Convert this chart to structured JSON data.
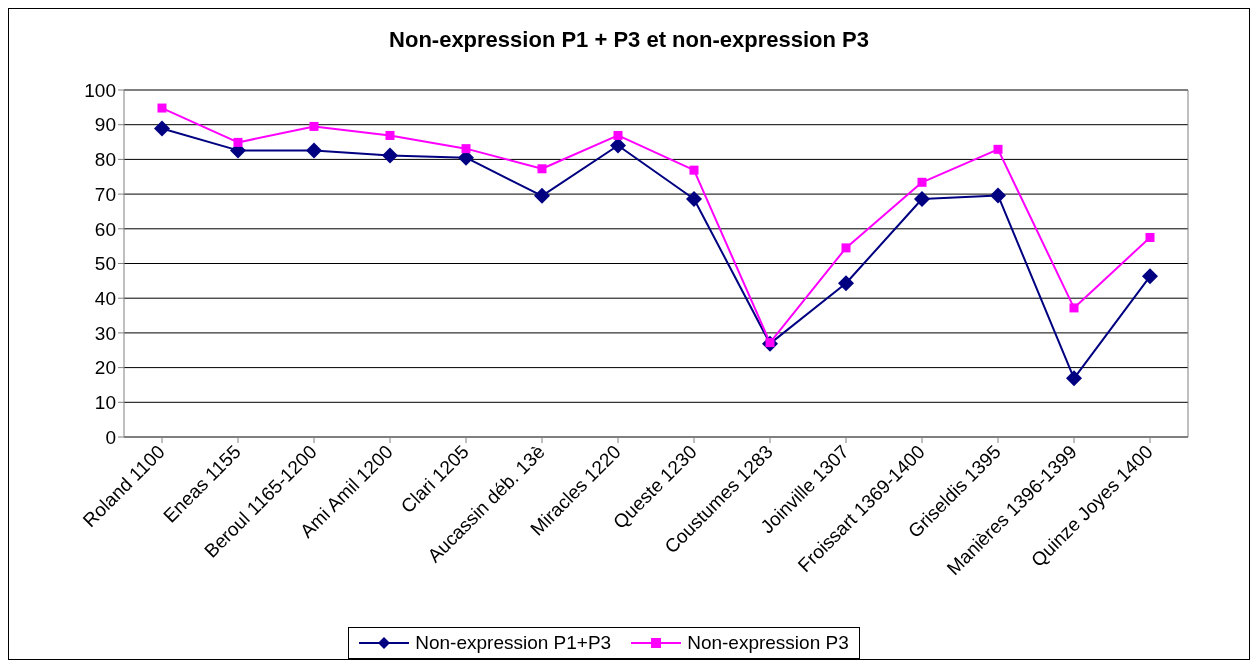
{
  "chart_data": {
    "type": "line",
    "title": "Non-expression P1 + P3 et non-expression P3",
    "categories": [
      "Roland 1100",
      "Eneas 1155",
      "Beroul 1165-1200",
      "Ami Amil 1200",
      "Clari 1205",
      "Aucassin déb. 13è",
      "Miracles 1220",
      "Queste 1230",
      "Coustumes 1283",
      "Joinville 1307",
      "Froissart 1369-1400",
      "Griseldis 1395",
      "Manières 1396-1399",
      "Quinze Joyes 1400"
    ],
    "series": [
      {
        "name": "Non-expression P1+P3",
        "color": "#000080",
        "marker": "diamond",
        "values": [
          88.9,
          82.6,
          82.6,
          81.1,
          80.5,
          69.5,
          84,
          68.6,
          26.9,
          44.3,
          68.6,
          69.6,
          16.9,
          46.3
        ]
      },
      {
        "name": "Non-expression P3",
        "color": "#ff00ff",
        "marker": "square",
        "values": [
          94.8,
          84.9,
          89.5,
          86.9,
          83.1,
          77.3,
          86.9,
          76.9,
          27.2,
          54.5,
          73.4,
          82.9,
          37.2,
          57.5
        ]
      }
    ],
    "ylim": [
      0,
      100
    ],
    "yticks": [
      0,
      10,
      20,
      30,
      40,
      50,
      60,
      70,
      80,
      90,
      100
    ],
    "grid": "y",
    "legend": "bottom",
    "line_style": "solid"
  }
}
